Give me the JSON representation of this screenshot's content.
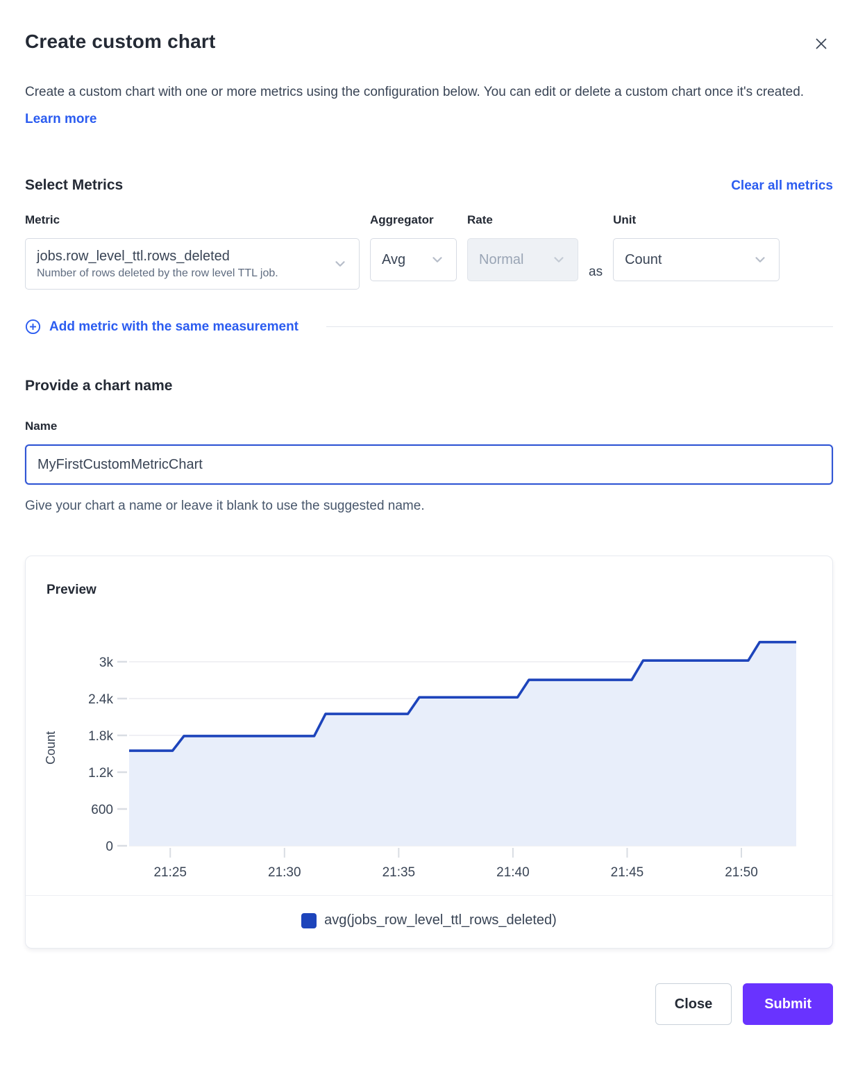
{
  "modal": {
    "title": "Create custom chart",
    "description": "Create a custom chart with one or more metrics using the configuration below. You can edit or delete a custom chart once it's created.",
    "learn_more_label": "Learn more"
  },
  "metrics_section": {
    "heading": "Select Metrics",
    "clear_all_label": "Clear all metrics",
    "metric_label": "Metric",
    "aggregator_label": "Aggregator",
    "rate_label": "Rate",
    "unit_label": "Unit",
    "metric_value": "jobs.row_level_ttl.rows_deleted",
    "metric_description": "Number of rows deleted by the row level TTL job.",
    "aggregator_value": "Avg",
    "rate_value": "Normal",
    "as_label": "as",
    "unit_value": "Count",
    "add_metric_label": "Add metric with the same measurement"
  },
  "name_section": {
    "heading": "Provide a chart name",
    "name_label": "Name",
    "name_value": "MyFirstCustomMetricChart",
    "helper_text": "Give your chart a name or leave it blank to use the suggested name."
  },
  "preview": {
    "heading": "Preview"
  },
  "footer": {
    "close_label": "Close",
    "submit_label": "Submit"
  },
  "colors": {
    "link_blue": "#2b5cf0",
    "line_blue": "#1d44bb",
    "area_fill": "#e8eefa",
    "submit_purple": "#6933ff"
  },
  "chart_data": {
    "type": "area",
    "title": "Preview",
    "xlabel": "",
    "ylabel": "Count",
    "grid": true,
    "legend_position": "bottom",
    "xlim_minutes_after_21h": [
      23.2,
      52.4
    ],
    "ylim": [
      0,
      3600
    ],
    "x_ticks": [
      {
        "m": 25,
        "label": "21:25"
      },
      {
        "m": 30,
        "label": "21:30"
      },
      {
        "m": 35,
        "label": "21:35"
      },
      {
        "m": 40,
        "label": "21:40"
      },
      {
        "m": 45,
        "label": "21:45"
      },
      {
        "m": 50,
        "label": "21:50"
      }
    ],
    "y_ticks": [
      {
        "v": 0,
        "label": "0"
      },
      {
        "v": 600,
        "label": "600"
      },
      {
        "v": 1200,
        "label": "1.2k"
      },
      {
        "v": 1800,
        "label": "1.8k"
      },
      {
        "v": 2400,
        "label": "2.4k"
      },
      {
        "v": 3000,
        "label": "3k"
      }
    ],
    "series": [
      {
        "name": "avg(jobs_row_level_ttl_rows_deleted)",
        "color": "#1d44bb",
        "fill": "#e8eefa",
        "points_minutes_value": [
          [
            23.2,
            1550
          ],
          [
            25.1,
            1550
          ],
          [
            25.6,
            1790
          ],
          [
            31.3,
            1790
          ],
          [
            31.8,
            2150
          ],
          [
            35.4,
            2150
          ],
          [
            35.9,
            2420
          ],
          [
            40.2,
            2420
          ],
          [
            40.7,
            2705
          ],
          [
            45.2,
            2705
          ],
          [
            45.7,
            3020
          ],
          [
            50.3,
            3020
          ],
          [
            50.8,
            3320
          ],
          [
            52.4,
            3320
          ]
        ]
      }
    ],
    "legend": [
      {
        "label": "avg(jobs_row_level_ttl_rows_deleted)",
        "color": "#1d44bb"
      }
    ]
  }
}
